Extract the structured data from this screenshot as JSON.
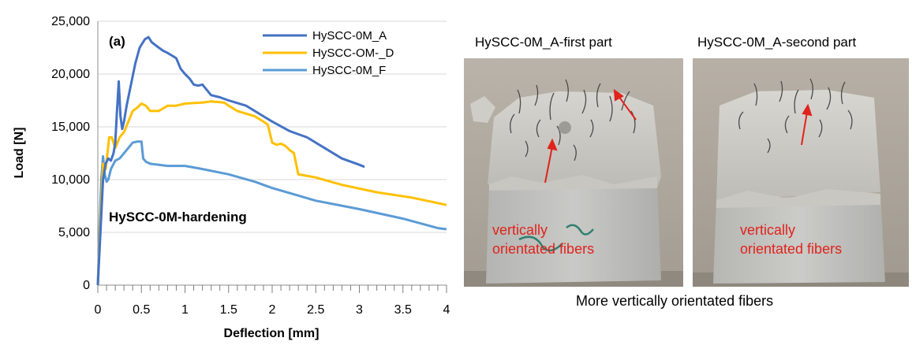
{
  "chart_data": {
    "type": "line",
    "panel_label": "(a)",
    "annotation": "HySCC-0M-hardening",
    "xlabel": "Deflection [mm]",
    "ylabel": "Load [N]",
    "xlim": [
      0,
      4
    ],
    "ylim": [
      0,
      25000
    ],
    "x_ticks": [
      "0",
      "0.5",
      "1",
      "1.5",
      "2",
      "2.5",
      "3",
      "3.5",
      "4"
    ],
    "y_ticks": [
      "0",
      "5,000",
      "10,000",
      "15,000",
      "20,000",
      "25,000"
    ],
    "grid": "horizontal",
    "legend_position": "top-right",
    "series": [
      {
        "name": "HySCC-0M_A",
        "color": "#4472c4",
        "points": [
          [
            0,
            0
          ],
          [
            0.03,
            5000
          ],
          [
            0.06,
            10000
          ],
          [
            0.09,
            11500
          ],
          [
            0.12,
            12000
          ],
          [
            0.15,
            11800
          ],
          [
            0.18,
            12500
          ],
          [
            0.2,
            13500
          ],
          [
            0.22,
            16500
          ],
          [
            0.24,
            19300
          ],
          [
            0.26,
            16000
          ],
          [
            0.28,
            14800
          ],
          [
            0.3,
            15500
          ],
          [
            0.33,
            17000
          ],
          [
            0.38,
            19000
          ],
          [
            0.43,
            21000
          ],
          [
            0.48,
            22500
          ],
          [
            0.54,
            23300
          ],
          [
            0.58,
            23500
          ],
          [
            0.62,
            23000
          ],
          [
            0.7,
            22500
          ],
          [
            0.75,
            22200
          ],
          [
            0.8,
            22000
          ],
          [
            0.9,
            21500
          ],
          [
            0.95,
            20500
          ],
          [
            1.0,
            20000
          ],
          [
            1.05,
            19600
          ],
          [
            1.1,
            19000
          ],
          [
            1.15,
            18900
          ],
          [
            1.2,
            19000
          ],
          [
            1.3,
            18000
          ],
          [
            1.4,
            17800
          ],
          [
            1.5,
            17500
          ],
          [
            1.7,
            17000
          ],
          [
            1.9,
            16000
          ],
          [
            2.0,
            15500
          ],
          [
            2.2,
            14600
          ],
          [
            2.4,
            14000
          ],
          [
            2.6,
            13000
          ],
          [
            2.8,
            12000
          ],
          [
            3.0,
            11400
          ],
          [
            3.06,
            11200
          ]
        ]
      },
      {
        "name": "HySCC-OM-_D",
        "color": "#ffc000",
        "points": [
          [
            0,
            0
          ],
          [
            0.03,
            6000
          ],
          [
            0.06,
            11500
          ],
          [
            0.09,
            11000
          ],
          [
            0.11,
            12500
          ],
          [
            0.13,
            14000
          ],
          [
            0.16,
            14000
          ],
          [
            0.2,
            13000
          ],
          [
            0.25,
            14000
          ],
          [
            0.3,
            14500
          ],
          [
            0.35,
            15500
          ],
          [
            0.4,
            16500
          ],
          [
            0.45,
            16800
          ],
          [
            0.5,
            17200
          ],
          [
            0.55,
            17000
          ],
          [
            0.6,
            16500
          ],
          [
            0.7,
            16500
          ],
          [
            0.8,
            17000
          ],
          [
            0.9,
            17000
          ],
          [
            1.0,
            17200
          ],
          [
            1.2,
            17300
          ],
          [
            1.3,
            17400
          ],
          [
            1.45,
            17300
          ],
          [
            1.5,
            17000
          ],
          [
            1.6,
            16500
          ],
          [
            1.8,
            16000
          ],
          [
            1.9,
            15500
          ],
          [
            1.95,
            15200
          ],
          [
            2.0,
            13500
          ],
          [
            2.05,
            13300
          ],
          [
            2.1,
            13400
          ],
          [
            2.15,
            13200
          ],
          [
            2.2,
            12800
          ],
          [
            2.25,
            12500
          ],
          [
            2.3,
            10500
          ],
          [
            2.5,
            10200
          ],
          [
            2.8,
            9500
          ],
          [
            3.2,
            8800
          ],
          [
            3.6,
            8300
          ],
          [
            4.0,
            7600
          ]
        ]
      },
      {
        "name": "HySCC-0M_F",
        "color": "#5b9bd5",
        "points": [
          [
            0,
            0
          ],
          [
            0.02,
            5500
          ],
          [
            0.04,
            10000
          ],
          [
            0.06,
            12200
          ],
          [
            0.08,
            10500
          ],
          [
            0.1,
            9800
          ],
          [
            0.12,
            10000
          ],
          [
            0.15,
            11000
          ],
          [
            0.2,
            11800
          ],
          [
            0.25,
            12000
          ],
          [
            0.3,
            12500
          ],
          [
            0.35,
            13000
          ],
          [
            0.4,
            13500
          ],
          [
            0.45,
            13600
          ],
          [
            0.5,
            13600
          ],
          [
            0.52,
            12000
          ],
          [
            0.55,
            11700
          ],
          [
            0.6,
            11500
          ],
          [
            0.8,
            11300
          ],
          [
            1.0,
            11300
          ],
          [
            1.2,
            11000
          ],
          [
            1.5,
            10500
          ],
          [
            1.8,
            9800
          ],
          [
            2.0,
            9200
          ],
          [
            2.5,
            8000
          ],
          [
            3.0,
            7200
          ],
          [
            3.5,
            6300
          ],
          [
            3.9,
            5400
          ],
          [
            4.0,
            5300
          ]
        ]
      }
    ]
  },
  "photos": {
    "first_title": "HySCC-0M_A-first part",
    "second_title": "HySCC-0M_A-second part",
    "first_label_line1": "vertically",
    "first_label_line2": "orientated fibers",
    "second_label_line1": "vertically",
    "second_label_line2": "orientated fibers",
    "caption": "More vertically orientated fibers",
    "arrow_color": "#e0231c",
    "label_color": "#e0231c"
  }
}
